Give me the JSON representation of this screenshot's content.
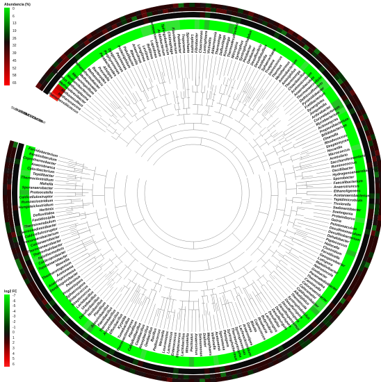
{
  "legends": {
    "abundance": {
      "title": "Abundancia (%)",
      "ticks": [
        "0",
        "6",
        "13",
        "19",
        "26",
        "32",
        "39",
        "45",
        "52",
        "58",
        "65"
      ],
      "colors": [
        "#00ee00",
        "#00b400",
        "#007a00",
        "#004000",
        "#1a0a0a",
        "#4a0808",
        "#7a0505",
        "#aa0303",
        "#d80000",
        "#ff0000"
      ]
    },
    "log2fc": {
      "title": "log2 FC",
      "ticks": [
        "-7",
        "-6",
        "-5",
        "-4",
        "-3",
        "-2",
        "-1",
        "0",
        "1",
        "2",
        "3",
        "4",
        "5",
        "6"
      ],
      "colors": [
        "#00ff00",
        "#00c800",
        "#009600",
        "#006400",
        "#003200",
        "#1a1010",
        "#500000",
        "#a00000",
        "#e00000",
        "#ff2020"
      ]
    }
  },
  "track_labels": [
    "Start 5.5 BM",
    "Start 5.5 CW",
    "Start 7.5 BM",
    "Start 7.5 CW",
    "Control",
    "Start"
  ],
  "taxa": [
    "Methanomassiliicoccus",
    "Methanosarcina",
    "Methanoculleus",
    "Methanobrevibacter",
    "Candidatus Methanoplasma",
    "Methanobacterium",
    "Methanospirillum",
    "Methanosaeta",
    "Methanothermobacter",
    "Methanothrix",
    "Bacteroides",
    "Prevotella",
    "Alistipes",
    "Parabacteroides",
    "Porphyromonas",
    "Dysgonomonas",
    "Petrimonas",
    "Proteiniphilum",
    "Paludibacter",
    "Rikenella",
    "Anaerolinea",
    "Longilinea",
    "Levilinea",
    "Bellilinea",
    "Leptolinea",
    "Thermoanaerobaculum",
    "Acidobacterium",
    "Sphingobacterium",
    "Chitinophaga",
    "Flavobacterium",
    "Pedobacter",
    "Treponema",
    "Spirochaeta",
    "Leptospira",
    "Fibrobacter",
    "Cloacimonas",
    "Lentisphaera",
    "Victivallis",
    "Akkermansia",
    "Thermotoga",
    "Defluviitoga",
    "Kosmotoga",
    "Thermodesulfovibrio",
    "Nitrospira",
    "Syntrophus",
    "Syntrophorhabdus",
    "Pelobacter",
    "Geobacter",
    "Desulfovibrio",
    "Desulfobulbus",
    "Smithella",
    "Sphaerochaeta",
    "Truepera",
    "Deinococcus",
    "Thermus",
    "Meiothermus",
    "Aminobacterium",
    "Aminiphilus",
    "Thermovirga",
    "Cloacibacillus",
    "Acetomicrobium",
    "Anaerobaculum",
    "Thermanaerovibrio",
    "Dethiosulfovibrio",
    "Pyramidobacter",
    "Fretibacterium",
    "Synergistes",
    "Jonquetella",
    "Arthrobacter",
    "Corynebacterium",
    "Mycobacterium",
    "Actinomyces",
    "Propionibacterium",
    "Bifidobacterium",
    "Olsenella",
    "Rhodococcus",
    "Streptomyces",
    "Nocardia",
    "Micrococcus",
    "Acetivibrio",
    "Saccharofermentans",
    "Ruminococcus",
    "Oscillibacter",
    "Hydrogenoanaerobacterium",
    "Sporobacter",
    "Faecalibacterium",
    "Anaerotruncus",
    "Ethanoligenens",
    "Acetanaerobacterium",
    "Tepidimicrobium",
    "Tissierella",
    "Sedimentibacter",
    "Soehngenia",
    "Proteiniborus",
    "Gelria",
    "Pelotomaculum",
    "Desulfotomaculum",
    "Desulfitobacterium",
    "Dehalobacter",
    "Peptococcus",
    "Halocella",
    "Clostridium",
    "Fervidicella",
    "Geosporobacter",
    "Lutispora",
    "Maledivibacter",
    "Natronincola",
    "Oxobacter",
    "Paramaledivibacter",
    "Thermotalea",
    "Caminicella",
    "Caloranaerobacter",
    "Caloramator",
    "Caldisalinibacter",
    "Alkaliphilus",
    "Thermincola",
    "Syntrophobotulus",
    "Desulfurispora",
    "Desulfonispora",
    "Desulfosporosinus",
    "Desulfurispora",
    "Desulfovirgula",
    "Desulfallas",
    "Lachnospira",
    "Butyrivibrio",
    "Roseburia",
    "Coprococcus",
    "Blautia",
    "Dorea",
    "Anaerostipes",
    "Lachnoclostridium",
    "Syntrophomonas",
    "Thermosyntropha",
    "Syntrophothermus",
    "Pelospora",
    "Sporomusa",
    "Acetonema",
    "Veillonella",
    "Megasphaera",
    "Dialister",
    "Selenomonas",
    "Anaerosinus",
    "Pectinatus",
    "Mitsuokella",
    "Lactobacillus",
    "Streptococcus",
    "Enterococcus",
    "Lactococcus",
    "Leuconostoc",
    "Weissella",
    "Pediococcus",
    "Bacillus",
    "Geobacillus",
    "Anoxybacillus",
    "Caldibacillus",
    "Caldalkalibacillus",
    "Planifilum",
    "Thermoactinomyces",
    "Tumebacillus",
    "Kyrpidia",
    "Effusibacillus",
    "Alicyclobacillus",
    "Thermobacillus",
    "Paenibacillus",
    "Aneurinibacillus",
    "Planifilum",
    "Novibacillus",
    "Desulfuribacillus",
    "Ureibacillus",
    "Lactobacillus",
    "Streptococcus",
    "Enterococcus",
    "Sphaerospora",
    "Propionispora",
    "Pelosinus",
    "Dendrosporobacter",
    "Anaerosporomusa",
    "Acetonema",
    "Thermacetogenium",
    "Moorella",
    "Tepidanaerobacter",
    "Caldicoprobacter",
    "Halothermothrix",
    "Thermohalobacter",
    "Thermoanaerobacter",
    "Caldanaerobacter",
    "Thermoanaerobacterium",
    "Caldicellulosiruptor",
    "Thermosediminibacter",
    "Thermovenabulum",
    "Fastidiosipila",
    "Defluviitalea",
    "Herbinix",
    "Hungateiclostridium",
    "Ruminiclostridium",
    "Caldicellulosiruptor",
    "Proteocatella",
    "Sporanaerobacter",
    "Mahella",
    "Thermoclostridium",
    "Tepidibacter",
    "Caloribacterium",
    "Anaerobranca",
    "Coprothermobacter",
    "Keratinibaculum",
    "Fervidobacterium"
  ],
  "leaf_trends": {
    "mostly_low": "green",
    "sparse_high": "red"
  }
}
